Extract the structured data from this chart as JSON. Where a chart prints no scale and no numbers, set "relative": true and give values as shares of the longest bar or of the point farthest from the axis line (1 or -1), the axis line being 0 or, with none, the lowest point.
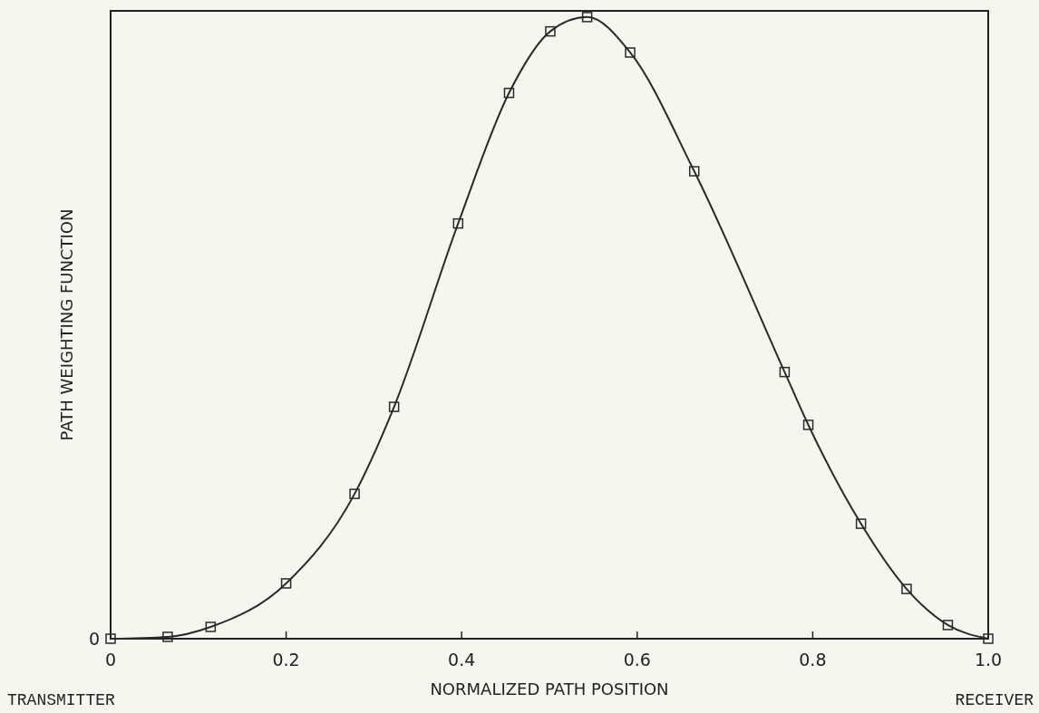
{
  "chart_data": {
    "type": "line",
    "xlabel": "NORMALIZED PATH POSITION",
    "ylabel": "PATH WEIGHTING FUNCTION",
    "relative": true,
    "marker": "square",
    "line_style": "solid",
    "grid": false,
    "xlim": [
      0,
      1
    ],
    "xticks": [
      0,
      0.2,
      0.4,
      0.6,
      0.8,
      {
        "value": 1,
        "label": "1.0"
      }
    ],
    "annotations": [
      "0",
      "TRANSMITTER",
      "RECEIVER"
    ],
    "series": [
      {
        "color": "#2a2a2a",
        "x": [
          0,
          0.065,
          0.114,
          0.2,
          0.278,
          0.323,
          0.396,
          0.454,
          0.501,
          0.543,
          0.592,
          0.665,
          0.768,
          0.795,
          0.855,
          0.907,
          0.954,
          1.0
        ],
        "values": [
          0,
          0.003,
          0.019,
          0.089,
          0.233,
          0.373,
          0.668,
          0.878,
          0.977,
          1,
          0.943,
          0.752,
          0.429,
          0.344,
          0.185,
          0.08,
          0.022,
          0
        ]
      }
    ]
  }
}
